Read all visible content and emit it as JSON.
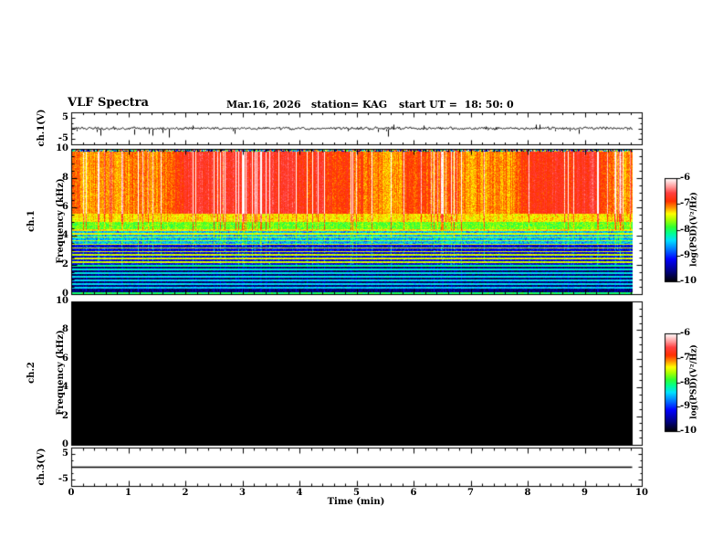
{
  "header": {
    "title": "VLF Spectra",
    "date": "Mar.16, 2026",
    "station": "station= KAG",
    "start_ut": "start UT =  18: 50: 0"
  },
  "left_labels": {
    "ch1": "ch.1(V)",
    "spec1_line1": "ch.1",
    "spec1_line2": "Frequency (kHz)",
    "spec2_line1": "ch.2",
    "spec2_line2": "Frequency (kHz)",
    "ch3": "ch.3(V)"
  },
  "axes": {
    "time": {
      "label": "Time (min)",
      "min": 0,
      "max": 10,
      "major_ticks": [
        0,
        1,
        2,
        3,
        4,
        5,
        6,
        7,
        8,
        9,
        10
      ],
      "tick_labels": [
        "0",
        "1",
        "2",
        "3",
        "4",
        "5",
        "6",
        "7",
        "8",
        "9",
        "10"
      ],
      "minor_step": 0.2
    },
    "waveform_ticks": {
      "values": [
        5,
        -5
      ],
      "labels": [
        "5",
        "-5"
      ],
      "ylim": [
        -7.5,
        7.5
      ]
    },
    "frequency_ticks": {
      "values": [
        10,
        8,
        6,
        4,
        2,
        0
      ],
      "labels": [
        "10",
        "8",
        "6",
        "4",
        "2",
        "0"
      ],
      "ylim": [
        0,
        10
      ],
      "minor_step": 0.5
    }
  },
  "colorbars": [
    {
      "label": "log(PSD)(V²/Hz)",
      "tick_values": [
        -6,
        -7,
        -8,
        -9,
        -10
      ],
      "tick_labels": [
        "-6",
        "-7",
        "-8",
        "-9",
        "-10"
      ],
      "vmin": -10,
      "vmax": -6
    },
    {
      "label": "log(PSD)(V²/Hz)",
      "tick_values": [
        -6,
        -7,
        -8,
        -9,
        -10
      ],
      "tick_labels": [
        "-6",
        "-7",
        "-8",
        "-9",
        "-10"
      ],
      "vmin": -10,
      "vmax": -6
    }
  ],
  "colormap": {
    "stops": [
      {
        "t": 0.0,
        "c": "#000000"
      },
      {
        "t": 0.1,
        "c": "#000080"
      },
      {
        "t": 0.22,
        "c": "#0000ff"
      },
      {
        "t": 0.32,
        "c": "#0080ff"
      },
      {
        "t": 0.4,
        "c": "#00e0ff"
      },
      {
        "t": 0.47,
        "c": "#00ff90"
      },
      {
        "t": 0.53,
        "c": "#30ff30"
      },
      {
        "t": 0.6,
        "c": "#a8ff00"
      },
      {
        "t": 0.66,
        "c": "#ffff00"
      },
      {
        "t": 0.72,
        "c": "#ff9000"
      },
      {
        "t": 0.78,
        "c": "#ff3000"
      },
      {
        "t": 0.86,
        "c": "#ff4040"
      },
      {
        "t": 0.92,
        "c": "#ff9898"
      },
      {
        "t": 1.0,
        "c": "#ffffff"
      }
    ]
  },
  "chart_data": [
    {
      "type": "line",
      "name": "ch1_waveform",
      "ylabel": "ch.1(V)",
      "ylim": [
        -7.5,
        7.5
      ],
      "yticks": [
        5,
        -5
      ],
      "xlim_min": [
        0,
        10
      ],
      "baseline_v": 0,
      "noise_amp_v": 0.5,
      "spike_count": 26,
      "spike_max_v": 5,
      "spike_down_fraction": 0.72,
      "data_end_min": 9.84,
      "seed": 7,
      "description": "noisy trace centered on 0 V with sporadic impulsive spikes, mostly downward, to about ±5 V"
    },
    {
      "type": "heatmap",
      "name": "ch1_spectrogram",
      "ylabel": "Frequency (kHz)",
      "ylim": [
        0,
        10
      ],
      "xlim": [
        0,
        10
      ],
      "zlabel": "log(PSD)(V²/Hz)",
      "zlim": [
        -10,
        -6
      ],
      "data_end_min": 9.84,
      "seed": 42,
      "top_edge_noise_rows": 2,
      "line_halfwidth_khz": 0.055,
      "bands": [
        {
          "f_low": 0.0,
          "f_high": 1.9,
          "psd": -9.65,
          "noise": 0.3,
          "streak_gain": 0.38
        },
        {
          "f_low": 1.9,
          "f_high": 3.5,
          "psd": -9.25,
          "noise": 0.45,
          "streak_gain": 0.6
        },
        {
          "f_low": 3.5,
          "f_high": 4.4,
          "psd": -8.55,
          "noise": 0.5,
          "streak_gain": 0.7
        },
        {
          "f_low": 4.4,
          "f_high": 5.0,
          "psd": -7.8,
          "noise": 0.35,
          "streak_gain": 0.8
        },
        {
          "f_low": 5.0,
          "f_high": 5.6,
          "psd": -7.35,
          "noise": 0.3,
          "streak_gain": 0.9
        },
        {
          "f_low": 5.6,
          "f_high": 10.0,
          "psd": -6.98,
          "noise": 0.22,
          "streak_gain": 1.15
        }
      ],
      "harmonic_lines": [
        {
          "f": 0.06,
          "psd": -8.0
        },
        {
          "f": 0.45,
          "psd": -8.45
        },
        {
          "f": 0.7,
          "psd": -8.4
        },
        {
          "f": 0.95,
          "psd": -8.4
        },
        {
          "f": 1.2,
          "psd": -8.35
        },
        {
          "f": 1.45,
          "psd": -8.35
        },
        {
          "f": 1.7,
          "psd": -8.3
        },
        {
          "f": 1.95,
          "psd": -8.1
        },
        {
          "f": 2.2,
          "psd": -7.5
        },
        {
          "f": 2.45,
          "psd": -7.45
        },
        {
          "f": 2.7,
          "psd": -7.5
        },
        {
          "f": 2.95,
          "psd": -7.45
        },
        {
          "f": 3.2,
          "psd": -7.5
        },
        {
          "f": 3.45,
          "psd": -7.45
        },
        {
          "f": 3.7,
          "psd": -7.5
        },
        {
          "f": 3.95,
          "psd": -7.45
        },
        {
          "f": 4.2,
          "psd": -7.4
        },
        {
          "f": 4.45,
          "psd": -7.3
        }
      ],
      "description": "broadband red sferic activity above ~5.5 kHz with white lightning streaks, yellow/green transition 4.4-5.6 kHz, blue speckle below, cyan/yellow power-line harmonic lines every 0.25 kHz below ~4.5 kHz"
    },
    {
      "type": "heatmap",
      "name": "ch2_spectrogram",
      "ylabel": "Frequency (kHz)",
      "ylim": [
        0,
        10
      ],
      "xlim": [
        0,
        10
      ],
      "zlabel": "log(PSD)(V²/Hz)",
      "zlim": [
        -10,
        -6
      ],
      "uniform_psd": -10,
      "data_end_min": 9.84,
      "description": "no signal: uniform minimum (black) panel"
    },
    {
      "type": "line",
      "name": "ch3_waveform",
      "ylabel": "ch.3(V)",
      "ylim": [
        -7.5,
        7.5
      ],
      "yticks": [
        5,
        -5
      ],
      "constant_v": 0,
      "data_end_min": 9.84,
      "description": "flat line at 0 V"
    }
  ]
}
